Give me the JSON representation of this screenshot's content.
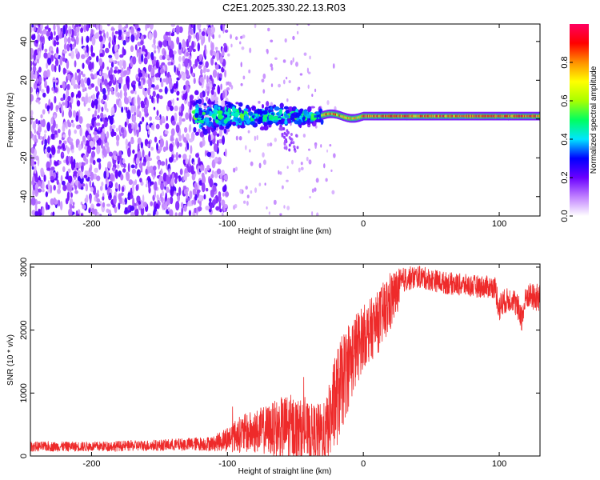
{
  "title": "C2E1.2025.330.22.13.R03",
  "chart_data": [
    {
      "type": "heatmap",
      "xlabel": "Height of straight line (km)",
      "ylabel": "Frequency (Hz)",
      "xlim": [
        -245,
        130
      ],
      "ylim": [
        -50,
        49
      ],
      "xticks": [
        -200,
        -100,
        0,
        100
      ],
      "xtick_labels": [
        "-200",
        "-100",
        "0",
        "100"
      ],
      "yticks": [
        -40,
        -20,
        0,
        20,
        40
      ],
      "ytick_labels": [
        "-40",
        "-20",
        "0",
        "20",
        "40"
      ],
      "colorbar": {
        "label": "Normalized spectral amplitude",
        "range": [
          0,
          1
        ],
        "ticks": [
          0.0,
          0.2,
          0.4,
          0.6,
          0.8
        ],
        "tick_labels": [
          "0.0",
          "0.2",
          "0.4",
          "0.6",
          "0.8"
        ],
        "colors": [
          "#ffffff",
          "#c080ff",
          "#6a00ff",
          "#0000ff",
          "#00e5ff",
          "#00ff60",
          "#a8ff00",
          "#ffff00",
          "#ff9000",
          "#ff0000",
          "#ff0060"
        ]
      },
      "features": {
        "broadband_noise_x_range": [
          -245,
          -100
        ],
        "transition_x_range": [
          -100,
          -30
        ],
        "narrowband_line_x_range": [
          -30,
          130
        ],
        "narrowband_frequency_hz": 1.5,
        "narrowband_peak_amplitude": 0.95
      }
    },
    {
      "type": "line",
      "xlabel": "Height of straight line (km)",
      "ylabel": "SNR (10 * v/v)",
      "xlim": [
        -245,
        130
      ],
      "ylim": [
        0,
        3050
      ],
      "xticks": [
        -200,
        -100,
        0,
        100
      ],
      "xtick_labels": [
        "-200",
        "-100",
        "0",
        "100"
      ],
      "yticks": [
        0,
        1000,
        2000,
        3000
      ],
      "ytick_labels": [
        "0",
        "1000",
        "2000",
        "3000"
      ],
      "color": "#ee2a2a",
      "envelope": [
        {
          "x": -245,
          "mean": 150,
          "spread": 80
        },
        {
          "x": -200,
          "mean": 150,
          "spread": 80
        },
        {
          "x": -150,
          "mean": 170,
          "spread": 90
        },
        {
          "x": -110,
          "mean": 200,
          "spread": 120
        },
        {
          "x": -90,
          "mean": 350,
          "spread": 300
        },
        {
          "x": -70,
          "mean": 420,
          "spread": 400
        },
        {
          "x": -55,
          "mean": 450,
          "spread": 550
        },
        {
          "x": -40,
          "mean": 380,
          "spread": 450
        },
        {
          "x": -28,
          "mean": 350,
          "spread": 500
        },
        {
          "x": -20,
          "mean": 900,
          "spread": 800
        },
        {
          "x": -10,
          "mean": 1500,
          "spread": 700
        },
        {
          "x": 0,
          "mean": 1900,
          "spread": 500
        },
        {
          "x": 10,
          "mean": 2100,
          "spread": 500
        },
        {
          "x": 20,
          "mean": 2450,
          "spread": 500
        },
        {
          "x": 30,
          "mean": 2800,
          "spread": 200
        },
        {
          "x": 40,
          "mean": 2850,
          "spread": 180
        },
        {
          "x": 60,
          "mean": 2750,
          "spread": 180
        },
        {
          "x": 80,
          "mean": 2700,
          "spread": 180
        },
        {
          "x": 97,
          "mean": 2680,
          "spread": 180
        },
        {
          "x": 100,
          "mean": 2350,
          "spread": 250
        },
        {
          "x": 103,
          "mean": 2450,
          "spread": 200
        },
        {
          "x": 110,
          "mean": 2500,
          "spread": 200
        },
        {
          "x": 117,
          "mean": 2200,
          "spread": 250
        },
        {
          "x": 120,
          "mean": 2550,
          "spread": 200
        },
        {
          "x": 130,
          "mean": 2500,
          "spread": 250
        }
      ]
    }
  ]
}
